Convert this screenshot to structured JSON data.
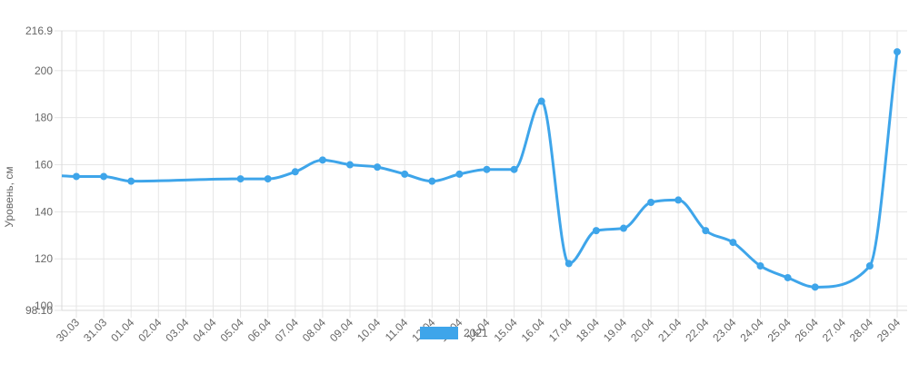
{
  "chart_data": {
    "type": "line",
    "ylabel": "Уровень, см",
    "xlabel": "",
    "ylim": [
      98.1,
      216.9
    ],
    "y_ticks": [
      "216.9",
      "200",
      "180",
      "160",
      "140",
      "120",
      "100",
      "98.10"
    ],
    "y_tick_values": [
      216.9,
      200,
      180,
      160,
      140,
      120,
      100,
      98.1
    ],
    "categories": [
      "30.03",
      "31.03",
      "01.04",
      "02.04",
      "03.04",
      "04.04",
      "05.04",
      "06.04",
      "07.04",
      "08.04",
      "09.04",
      "10.04",
      "11.04",
      "12.04",
      "13.04",
      "14.04",
      "15.04",
      "16.04",
      "17.04",
      "18.04",
      "19.04",
      "20.04",
      "21.04",
      "22.04",
      "23.04",
      "24.04",
      "25.04",
      "26.04",
      "27.04",
      "28.04",
      "29.04"
    ],
    "grid": true,
    "legend_position": "bottom",
    "colors": {
      "series": "#3ea5ea",
      "grid": "#e6e6e6",
      "axis": "#d9d9d9",
      "text": "#666666"
    },
    "series": [
      {
        "name": "2021",
        "values": [
          155,
          155,
          153,
          null,
          null,
          null,
          154,
          154,
          157,
          162,
          160,
          159,
          156,
          153,
          156,
          158,
          158,
          187,
          118,
          132,
          133,
          144,
          145,
          132,
          127,
          117,
          112,
          108,
          null,
          117,
          208
        ]
      }
    ],
    "line_start_value": 155.3
  }
}
